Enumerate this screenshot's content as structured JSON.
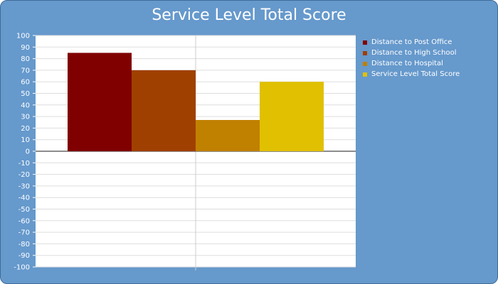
{
  "chart_data": {
    "type": "bar",
    "title": "Service Level Total Score",
    "categories": [
      "Distance to Post Office",
      "Distance to High School",
      "Distance to Hospital",
      "Service Level Total Score"
    ],
    "values": [
      85,
      70,
      27,
      60
    ],
    "colors": [
      "#800000",
      "#a04000",
      "#c08000",
      "#e0c000"
    ],
    "ylim": [
      -100,
      100
    ],
    "yticks": [
      100,
      90,
      80,
      70,
      60,
      50,
      40,
      30,
      20,
      10,
      0,
      -10,
      -20,
      -30,
      -40,
      -50,
      -60,
      -70,
      -80,
      -90,
      -100
    ],
    "grid": true,
    "legend_position": "right"
  }
}
